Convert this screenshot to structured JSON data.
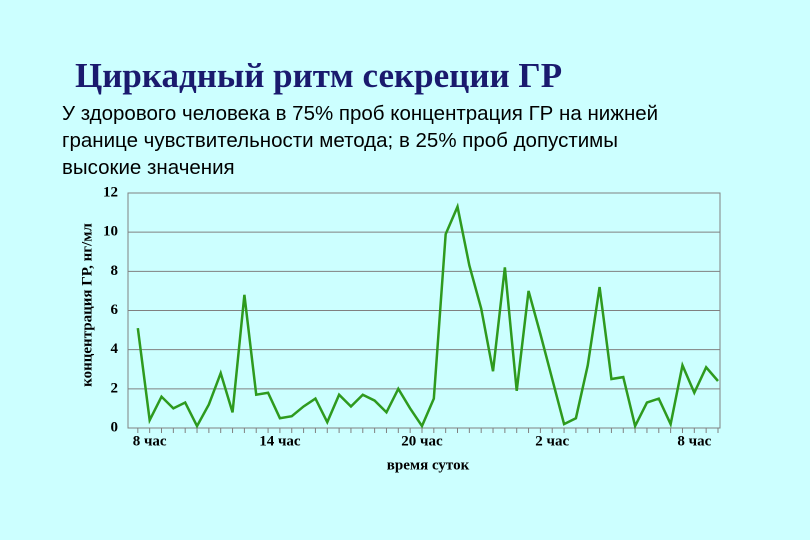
{
  "chart_data": {
    "type": "line",
    "title": "Циркадный ритм секреции ГР",
    "subtitle": "У здорового человека в 75% проб концентрация ГР на нижней границе чувствительности метода; в 25% проб допустимы высокие значения",
    "y_label": "концентрация ГР, нг/мл",
    "x_label": "время суток",
    "categories": [
      null,
      "8 час",
      null,
      null,
      null,
      null,
      null,
      null,
      null,
      null,
      null,
      null,
      "14 час",
      null,
      null,
      null,
      null,
      null,
      null,
      null,
      null,
      null,
      null,
      null,
      "20 час",
      null,
      null,
      null,
      null,
      null,
      null,
      null,
      null,
      null,
      null,
      "2 час",
      null,
      null,
      null,
      null,
      null,
      null,
      null,
      null,
      null,
      null,
      null,
      "8 час",
      null,
      null
    ],
    "series": [
      {
        "name": "ГР",
        "color": "#2e9a1e",
        "values": [
          5.1,
          0.4,
          1.6,
          1.0,
          1.3,
          0.1,
          1.2,
          2.8,
          0.8,
          6.8,
          1.7,
          1.8,
          0.5,
          0.6,
          1.1,
          1.5,
          0.3,
          1.7,
          1.1,
          1.7,
          1.4,
          0.8,
          2.0,
          1.0,
          0.1,
          1.5,
          9.9,
          11.3,
          8.3,
          6.1,
          2.9,
          8.2,
          1.9,
          7.0,
          4.8,
          2.5,
          0.2,
          0.5,
          3.2,
          7.2,
          2.5,
          2.6,
          0.1,
          1.3,
          1.5,
          0.2,
          3.2,
          1.8,
          3.1,
          2.4
        ]
      }
    ],
    "ylim": [
      0,
      12
    ],
    "yticks": [
      0,
      2,
      4,
      6,
      8,
      10,
      12
    ],
    "grid": true
  }
}
